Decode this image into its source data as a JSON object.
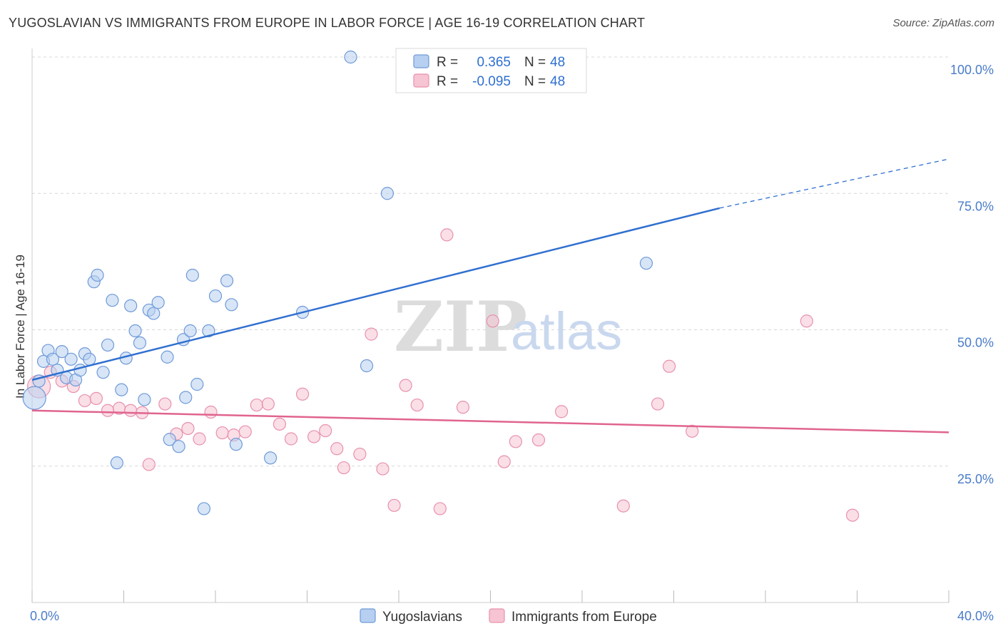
{
  "title": "YUGOSLAVIAN VS IMMIGRANTS FROM EUROPE IN LABOR FORCE | AGE 16-19 CORRELATION CHART",
  "source": "Source: ZipAtlas.com",
  "watermark": {
    "zip": "ZIP",
    "atlas": "atlas"
  },
  "colors": {
    "blue_fill": "#b7cff0",
    "blue_stroke": "#6f9ad8",
    "blue_line": "#2f6fd0",
    "pink_fill": "#f6c4d3",
    "pink_stroke": "#e891ad",
    "pink_line": "#e0648f",
    "grid": "#d8d8d8",
    "tick_label": "#4a7cc9"
  },
  "legend": {
    "rows": [
      {
        "r_label": "R =",
        "r_value": "0.365",
        "n_label": "N =",
        "n_value": "48",
        "color": "blue"
      },
      {
        "r_label": "R =",
        "r_value": "-0.095",
        "n_label": "N =",
        "n_value": "48",
        "color": "pink"
      }
    ]
  },
  "bottom_legend": [
    "Yugoslavians",
    "Immigrants from Europe"
  ],
  "chart_data": {
    "type": "scatter",
    "xlabel": "",
    "ylabel": "In Labor Force | Age 16-19",
    "xlim": [
      0,
      40
    ],
    "ylim": [
      0,
      100
    ],
    "x_tick_labels": [
      "0.0%",
      "40.0%"
    ],
    "y_ticks": [
      25,
      50,
      75,
      100
    ],
    "y_tick_labels": [
      "25.0%",
      "50.0%",
      "75.0%",
      "100.0%"
    ],
    "grid": true,
    "legend_position": "top-center",
    "series": [
      {
        "name": "Yugoslavians",
        "color": "blue",
        "trend": {
          "x0": 0,
          "y0": 40.8,
          "x1": 30,
          "y1": 72.3,
          "dash_to_x": 40,
          "dash_to_y": 81.3
        },
        "points": [
          [
            0.1,
            37.5
          ],
          [
            0.3,
            40.6
          ],
          [
            0.5,
            44.2
          ],
          [
            0.7,
            46.2
          ],
          [
            0.9,
            44.6
          ],
          [
            1.1,
            42.6
          ],
          [
            1.3,
            46.0
          ],
          [
            1.5,
            41.2
          ],
          [
            1.7,
            44.6
          ],
          [
            1.9,
            40.8
          ],
          [
            2.1,
            42.6
          ],
          [
            2.3,
            45.6
          ],
          [
            2.5,
            44.6
          ],
          [
            2.7,
            58.8
          ],
          [
            2.85,
            60.0
          ],
          [
            3.1,
            42.2
          ],
          [
            3.3,
            47.2
          ],
          [
            3.5,
            55.4
          ],
          [
            3.7,
            25.6
          ],
          [
            3.9,
            39.0
          ],
          [
            4.1,
            44.8
          ],
          [
            4.3,
            54.4
          ],
          [
            4.5,
            49.8
          ],
          [
            4.7,
            47.6
          ],
          [
            4.9,
            37.2
          ],
          [
            5.1,
            53.6
          ],
          [
            5.3,
            53.0
          ],
          [
            5.5,
            55.0
          ],
          [
            5.9,
            45.0
          ],
          [
            6.0,
            29.9
          ],
          [
            6.4,
            28.6
          ],
          [
            6.6,
            48.2
          ],
          [
            6.7,
            37.6
          ],
          [
            6.9,
            49.8
          ],
          [
            7.0,
            60.0
          ],
          [
            7.2,
            40.0
          ],
          [
            7.5,
            17.2
          ],
          [
            7.7,
            49.8
          ],
          [
            8.0,
            56.2
          ],
          [
            8.5,
            59.0
          ],
          [
            8.7,
            54.6
          ],
          [
            8.9,
            29.0
          ],
          [
            10.4,
            26.5
          ],
          [
            11.8,
            53.2
          ],
          [
            13.9,
            100.0
          ],
          [
            14.6,
            43.4
          ],
          [
            15.5,
            75.0
          ],
          [
            26.8,
            62.2
          ]
        ]
      },
      {
        "name": "Immigrants from Europe",
        "color": "pink",
        "trend": {
          "x0": 0,
          "y0": 35.2,
          "x1": 40,
          "y1": 31.2
        },
        "points": [
          [
            0.3,
            39.6
          ],
          [
            0.8,
            42.2
          ],
          [
            1.3,
            40.6
          ],
          [
            1.8,
            39.6
          ],
          [
            2.3,
            37.0
          ],
          [
            2.8,
            37.4
          ],
          [
            3.3,
            35.2
          ],
          [
            3.8,
            35.6
          ],
          [
            4.3,
            35.2
          ],
          [
            4.8,
            34.8
          ],
          [
            5.1,
            25.3
          ],
          [
            5.8,
            36.4
          ],
          [
            6.3,
            30.9
          ],
          [
            6.8,
            31.9
          ],
          [
            7.3,
            30.0
          ],
          [
            7.8,
            34.9
          ],
          [
            8.3,
            31.1
          ],
          [
            8.8,
            30.7
          ],
          [
            9.3,
            31.3
          ],
          [
            9.8,
            36.2
          ],
          [
            10.3,
            36.4
          ],
          [
            10.8,
            32.7
          ],
          [
            11.3,
            30.0
          ],
          [
            11.8,
            38.2
          ],
          [
            12.3,
            30.4
          ],
          [
            12.8,
            31.5
          ],
          [
            13.3,
            28.2
          ],
          [
            13.6,
            24.7
          ],
          [
            14.3,
            27.2
          ],
          [
            14.8,
            49.2
          ],
          [
            15.3,
            24.5
          ],
          [
            15.8,
            17.8
          ],
          [
            16.3,
            39.8
          ],
          [
            16.8,
            36.2
          ],
          [
            17.8,
            17.2
          ],
          [
            18.1,
            67.4
          ],
          [
            18.8,
            35.8
          ],
          [
            20.1,
            51.6
          ],
          [
            20.6,
            25.8
          ],
          [
            21.1,
            29.5
          ],
          [
            22.1,
            29.8
          ],
          [
            23.1,
            35.0
          ],
          [
            25.8,
            17.7
          ],
          [
            27.3,
            36.4
          ],
          [
            27.8,
            43.3
          ],
          [
            28.8,
            31.4
          ],
          [
            33.8,
            51.6
          ],
          [
            35.8,
            16.0
          ]
        ]
      }
    ]
  }
}
